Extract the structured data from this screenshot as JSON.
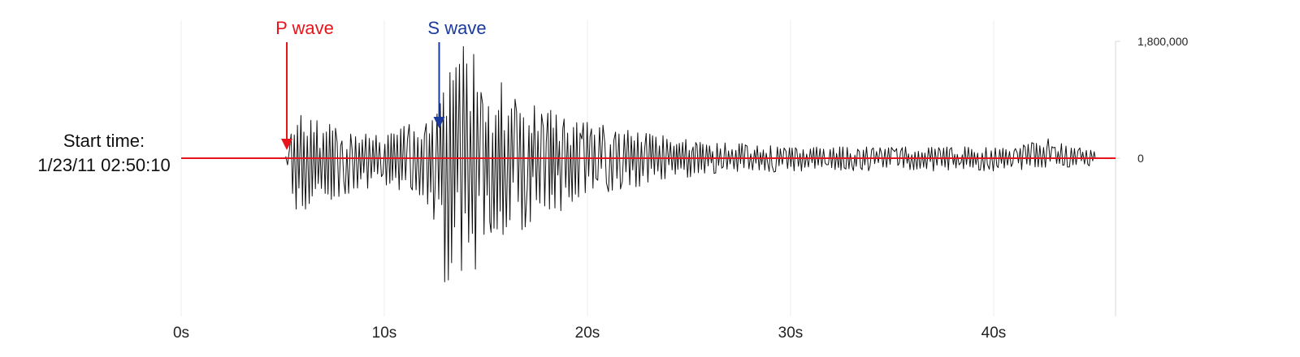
{
  "chart_data": {
    "type": "line",
    "title": "",
    "xlabel": "",
    "ylabel": "",
    "x_unit": "s",
    "xlim": [
      0,
      47
    ],
    "ylim": [
      -2800000,
      2200000
    ],
    "x_ticks": [
      0,
      10,
      20,
      30,
      40
    ],
    "x_tick_labels": [
      "0s",
      "10s",
      "20s",
      "30s",
      "40s"
    ],
    "y_ticks": [
      1800000,
      0
    ],
    "y_tick_labels": [
      "1,800,000",
      "0"
    ],
    "grid": "vertical",
    "baseline": {
      "value": 0,
      "color": "#e8141b"
    },
    "start_label": [
      "Start time:",
      "1/23/11 02:50:10"
    ],
    "annotations": [
      {
        "name": "p-wave",
        "label": "P wave",
        "x": 5.2,
        "color": "#e8141b"
      },
      {
        "name": "s-wave",
        "label": "S wave",
        "x": 12.7,
        "color": "#1a3a9c"
      }
    ],
    "series": [
      {
        "name": "seismogram",
        "color": "#111111",
        "note": "amplitude envelope of the waveform (estimated); trace rendered as oscillation within these bounds",
        "envelope": [
          {
            "x": 0,
            "upper": 0,
            "lower": 0
          },
          {
            "x": 5.2,
            "upper": 30000,
            "lower": -30000
          },
          {
            "x": 5.6,
            "upper": 750000,
            "lower": -850000
          },
          {
            "x": 7.0,
            "upper": 550000,
            "lower": -700000
          },
          {
            "x": 10.0,
            "upper": 400000,
            "lower": -450000
          },
          {
            "x": 12.0,
            "upper": 600000,
            "lower": -600000
          },
          {
            "x": 13.0,
            "upper": 1200000,
            "lower": -1950000
          },
          {
            "x": 14.0,
            "upper": 1800000,
            "lower": -1950000
          },
          {
            "x": 15.5,
            "upper": 1300000,
            "lower": -1250000
          },
          {
            "x": 17.0,
            "upper": 900000,
            "lower": -1100000
          },
          {
            "x": 20.0,
            "upper": 550000,
            "lower": -600000
          },
          {
            "x": 25.0,
            "upper": 300000,
            "lower": -300000
          },
          {
            "x": 30.0,
            "upper": 180000,
            "lower": -200000
          },
          {
            "x": 40.0,
            "upper": 180000,
            "lower": -200000
          },
          {
            "x": 42.7,
            "upper": 300000,
            "lower": -150000
          },
          {
            "x": 45.0,
            "upper": 120000,
            "lower": -150000
          }
        ]
      }
    ]
  }
}
